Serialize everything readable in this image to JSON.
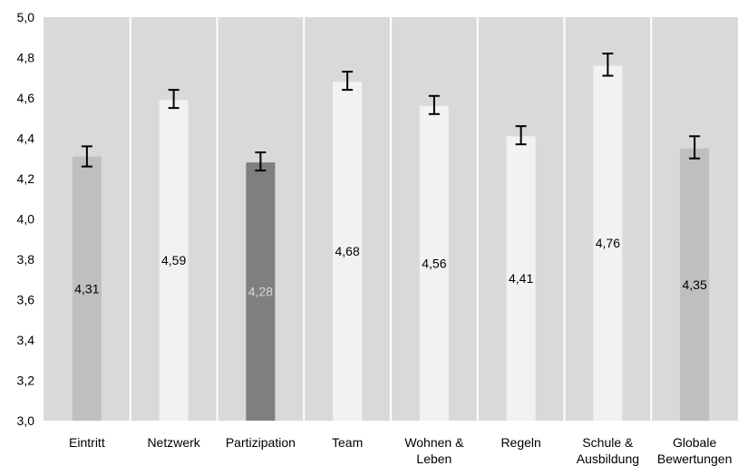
{
  "chart_data": {
    "type": "bar",
    "categories": [
      [
        "Eintritt"
      ],
      [
        "Netzwerk"
      ],
      [
        "Partizipation"
      ],
      [
        "Team"
      ],
      [
        "Wohnen &",
        "Leben"
      ],
      [
        "Regeln"
      ],
      [
        "Schule &",
        "Ausbildung"
      ],
      [
        "Globale",
        "Bewertungen"
      ]
    ],
    "values": [
      4.31,
      4.59,
      4.28,
      4.68,
      4.56,
      4.41,
      4.76,
      4.35
    ],
    "data_labels": [
      "4,31",
      "4,59",
      "4,28",
      "4,68",
      "4,56",
      "4,41",
      "4,76",
      "4,35"
    ],
    "error_low": [
      4.26,
      4.55,
      4.24,
      4.64,
      4.52,
      4.37,
      4.71,
      4.3
    ],
    "error_high": [
      4.36,
      4.64,
      4.33,
      4.73,
      4.61,
      4.46,
      4.82,
      4.41
    ],
    "bar_colors": [
      "#bfbfbf",
      "#f2f2f2",
      "#7f7f7f",
      "#f2f2f2",
      "#f2f2f2",
      "#f2f2f2",
      "#f2f2f2",
      "#bfbfbf"
    ],
    "label_colors": [
      "#000000",
      "#000000",
      "#d9d9d9",
      "#000000",
      "#000000",
      "#000000",
      "#000000",
      "#000000"
    ],
    "ylim": [
      3.0,
      5.0
    ],
    "yticks": [
      "3,0",
      "3,2",
      "3,4",
      "3,6",
      "3,8",
      "4,0",
      "4,2",
      "4,4",
      "4,6",
      "4,8",
      "5,0"
    ],
    "title": "",
    "xlabel": "",
    "ylabel": "",
    "grid": true,
    "legend": "none",
    "plot_background": "#d9d9d9",
    "gridline_color": "#ffffff"
  }
}
